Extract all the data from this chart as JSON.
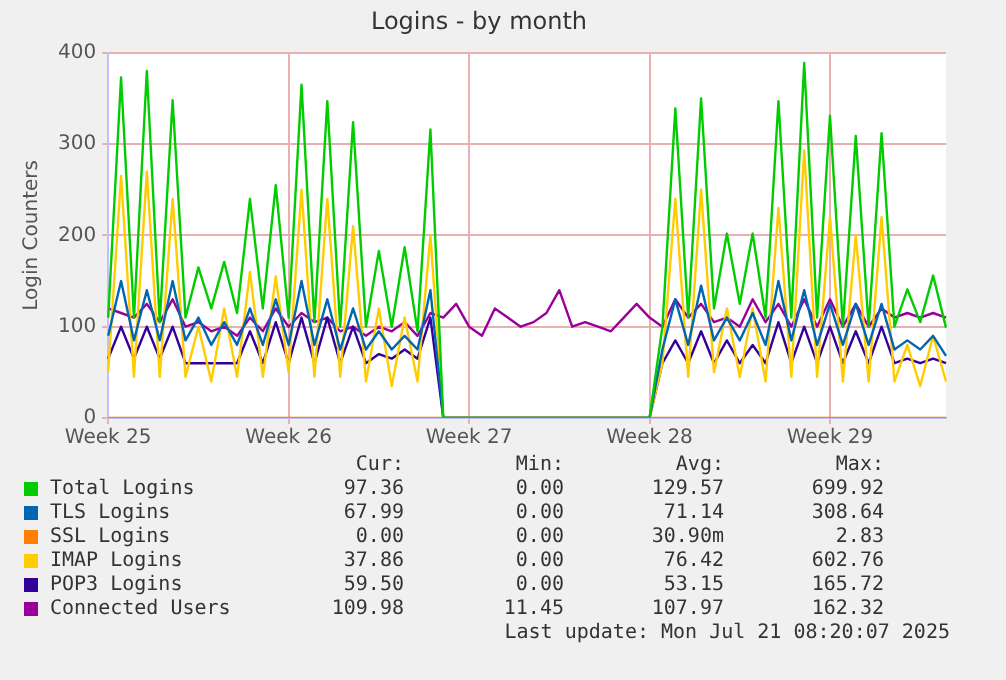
{
  "chart_data": {
    "type": "line",
    "title": "Logins - by month",
    "ylabel": "Login Counters",
    "categories": [
      "Week 25",
      null,
      null,
      null,
      null,
      null,
      null,
      null,
      null,
      null,
      null,
      null,
      null,
      null,
      "Week 26",
      null,
      null,
      null,
      null,
      null,
      null,
      null,
      null,
      null,
      null,
      null,
      null,
      null,
      "Week 27",
      null,
      null,
      null,
      null,
      null,
      null,
      null,
      null,
      null,
      null,
      null,
      null,
      null,
      "Week 28",
      null,
      null,
      null,
      null,
      null,
      null,
      null,
      null,
      null,
      null,
      null,
      null,
      null,
      "Week 29",
      null,
      null,
      null,
      null,
      null,
      null,
      null,
      null,
      null
    ],
    "ylim": [
      0,
      400
    ],
    "yticks": [
      0,
      100,
      200,
      300,
      400
    ],
    "grid": true,
    "legend": "bottom",
    "marker": "none",
    "line_style": "solid",
    "series": [
      {
        "name": "Total Logins",
        "color": "#00cc00",
        "values": [
          110,
          373,
          110,
          380,
          105,
          348,
          110,
          165,
          120,
          171,
          115,
          240,
          120,
          255,
          110,
          365,
          105,
          347,
          100,
          324,
          100,
          183,
          100,
          187,
          95,
          316,
          0,
          0,
          0,
          0,
          0,
          0,
          0,
          0,
          0,
          0,
          0,
          0,
          0,
          0,
          0,
          0,
          0,
          100,
          339,
          110,
          350,
          120,
          202,
          125,
          202,
          110,
          347,
          110,
          389,
          110,
          331,
          100,
          309,
          100,
          312,
          100,
          141,
          105,
          156,
          99
        ]
      },
      {
        "name": "TLS Logins",
        "color": "#0066b3",
        "values": [
          90,
          150,
          85,
          140,
          85,
          150,
          85,
          110,
          80,
          105,
          80,
          120,
          80,
          130,
          80,
          150,
          80,
          130,
          75,
          120,
          75,
          95,
          75,
          90,
          75,
          140,
          0,
          0,
          0,
          0,
          0,
          0,
          0,
          0,
          0,
          0,
          0,
          0,
          0,
          0,
          0,
          0,
          0,
          75,
          130,
          80,
          145,
          85,
          110,
          85,
          115,
          80,
          150,
          85,
          140,
          80,
          125,
          80,
          125,
          80,
          125,
          75,
          85,
          75,
          90,
          68
        ]
      },
      {
        "name": "SSL Logins",
        "color": "#ff8000",
        "values": [
          0,
          0,
          0,
          0,
          0,
          0,
          0,
          0,
          0,
          0,
          0,
          0,
          0,
          0,
          0,
          0,
          0,
          0,
          0,
          0,
          0,
          0,
          0,
          0,
          0,
          0,
          0,
          0,
          0,
          0,
          0,
          0,
          0,
          0,
          0,
          0,
          0,
          0,
          0,
          0,
          0,
          0,
          0,
          0,
          0,
          0,
          0,
          0,
          0,
          0,
          0,
          0,
          0,
          0,
          0,
          0,
          0,
          0,
          0,
          0,
          0,
          0,
          0,
          0,
          0,
          0
        ]
      },
      {
        "name": "IMAP Logins",
        "color": "#ffcc00",
        "values": [
          50,
          265,
          45,
          270,
          45,
          240,
          45,
          100,
          40,
          120,
          45,
          160,
          45,
          155,
          50,
          250,
          45,
          240,
          45,
          210,
          40,
          120,
          35,
          110,
          40,
          200,
          0,
          0,
          0,
          0,
          0,
          0,
          0,
          0,
          0,
          0,
          0,
          0,
          0,
          0,
          0,
          0,
          0,
          60,
          240,
          45,
          250,
          50,
          120,
          45,
          120,
          40,
          230,
          45,
          293,
          45,
          220,
          40,
          200,
          40,
          220,
          40,
          80,
          35,
          90,
          40
        ]
      },
      {
        "name": "POP3 Logins",
        "color": "#330099",
        "values": [
          65,
          100,
          65,
          100,
          65,
          100,
          60,
          60,
          60,
          60,
          60,
          95,
          60,
          105,
          60,
          110,
          60,
          110,
          60,
          100,
          60,
          70,
          65,
          75,
          65,
          110,
          0,
          0,
          0,
          0,
          0,
          0,
          0,
          0,
          0,
          0,
          0,
          0,
          0,
          0,
          0,
          0,
          0,
          60,
          85,
          60,
          95,
          60,
          85,
          60,
          80,
          60,
          105,
          60,
          100,
          60,
          100,
          60,
          95,
          60,
          100,
          60,
          65,
          60,
          65,
          60
        ]
      },
      {
        "name": "Connected Users",
        "color": "#990099",
        "values": [
          120,
          115,
          110,
          125,
          105,
          130,
          100,
          105,
          95,
          100,
          90,
          110,
          95,
          120,
          100,
          115,
          105,
          110,
          95,
          100,
          90,
          100,
          95,
          105,
          90,
          115,
          110,
          125,
          100,
          90,
          120,
          110,
          100,
          105,
          115,
          140,
          100,
          105,
          100,
          95,
          110,
          125,
          110,
          100,
          130,
          110,
          125,
          105,
          110,
          100,
          130,
          105,
          125,
          100,
          130,
          100,
          130,
          100,
          125,
          100,
          120,
          110,
          115,
          110,
          115,
          110
        ]
      }
    ],
    "annotations": [
      "Cur:",
      "Min:",
      "Avg:",
      "Max:",
      "97.36",
      "0.00",
      "129.57",
      "699.92",
      "67.99",
      "0.00",
      "71.14",
      "308.64",
      "0.00",
      "0.00",
      "30.90m",
      "2.83",
      "37.86",
      "0.00",
      "76.42",
      "602.76",
      "59.50",
      "0.00",
      "53.15",
      "165.72",
      "109.98",
      "11.45",
      "107.97",
      "162.32",
      "Last update: Mon Jul 21 08:20:07 2025"
    ]
  }
}
